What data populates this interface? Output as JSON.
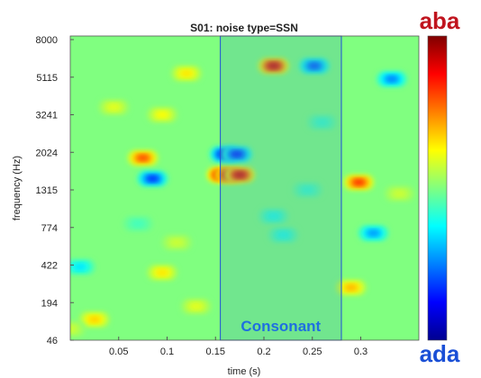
{
  "chart_data": {
    "type": "heatmap",
    "title": "S01: noise type=SSN",
    "xlabel": "time (s)",
    "ylabel": "frequency (Hz)",
    "xlim": [
      0,
      0.36
    ],
    "x_ticks": [
      0.05,
      0.1,
      0.15,
      0.2,
      0.25,
      0.3
    ],
    "x_tick_labels": [
      "0.05",
      "0.1",
      "0.15",
      "0.2",
      "0.25",
      "0.3"
    ],
    "y_tick_labels": [
      "46",
      "194",
      "422",
      "774",
      "1315",
      "2024",
      "3241",
      "5115",
      "8000"
    ],
    "grid": false,
    "colorbar": {
      "top_label": "aba",
      "bottom_label": "ada",
      "colormap": "jet",
      "range": [
        -1,
        1
      ]
    },
    "region": {
      "label": "Consonant",
      "x_start": 0.155,
      "x_end": 0.28
    },
    "blobs": [
      {
        "t": 0.157,
        "f_index": 4.4,
        "value": 1.0
      },
      {
        "t": 0.165,
        "f_index": 4.4,
        "value": 0.95
      },
      {
        "t": 0.175,
        "f_index": 4.4,
        "value": 0.85
      },
      {
        "t": 0.16,
        "f_index": 4.95,
        "value": -0.8
      },
      {
        "t": 0.172,
        "f_index": 4.95,
        "value": -0.7
      },
      {
        "t": 0.21,
        "f_index": 7.3,
        "value": 0.85
      },
      {
        "t": 0.252,
        "f_index": 7.3,
        "value": -0.6
      },
      {
        "t": 0.075,
        "f_index": 4.85,
        "value": 0.6
      },
      {
        "t": 0.085,
        "f_index": 4.3,
        "value": -0.65
      },
      {
        "t": 0.298,
        "f_index": 4.2,
        "value": 0.65
      },
      {
        "t": 0.332,
        "f_index": 6.95,
        "value": -0.5
      },
      {
        "t": 0.313,
        "f_index": 2.85,
        "value": -0.45
      },
      {
        "t": 0.29,
        "f_index": 1.4,
        "value": 0.4
      },
      {
        "t": 0.025,
        "f_index": 0.55,
        "value": 0.35
      },
      {
        "t": 0.01,
        "f_index": 1.95,
        "value": -0.3
      },
      {
        "t": 0.095,
        "f_index": 1.8,
        "value": 0.3
      },
      {
        "t": 0.12,
        "f_index": 7.1,
        "value": 0.3
      },
      {
        "t": 0.095,
        "f_index": 6.0,
        "value": 0.25
      },
      {
        "t": 0.045,
        "f_index": 6.2,
        "value": 0.2
      },
      {
        "t": 0.22,
        "f_index": 2.8,
        "value": -0.2
      },
      {
        "t": 0.21,
        "f_index": 3.3,
        "value": -0.2
      },
      {
        "t": 0.245,
        "f_index": 4.0,
        "value": -0.15
      },
      {
        "t": 0.13,
        "f_index": 0.9,
        "value": 0.2
      },
      {
        "t": 0.26,
        "f_index": 5.8,
        "value": -0.15
      },
      {
        "t": 0.11,
        "f_index": 2.6,
        "value": 0.15
      },
      {
        "t": 0.34,
        "f_index": 3.9,
        "value": 0.15
      },
      {
        "t": 0.07,
        "f_index": 3.1,
        "value": -0.12
      },
      {
        "t": 0.0,
        "f_index": 0.3,
        "value": 0.15
      }
    ]
  }
}
